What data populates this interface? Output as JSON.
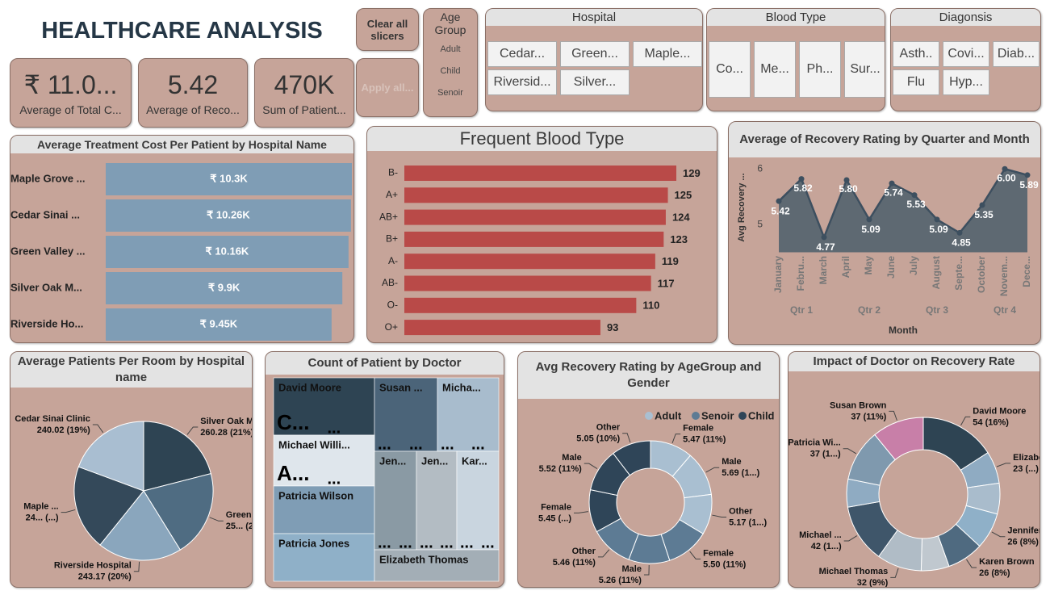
{
  "header": {
    "title": "HEALTHCARE ANALYSIS"
  },
  "buttons": [
    "Clear all slicers",
    "Apply all..."
  ],
  "cards": [
    {
      "value": "₹ 11.0...",
      "label": "Average of Total C..."
    },
    {
      "value": "5.42",
      "label": "Average of Reco..."
    },
    {
      "value": "470K",
      "label": "Sum of Patient..."
    }
  ],
  "slicers": [
    {
      "title": "Age Group",
      "items": [
        "Adult",
        "Child",
        "Senoir"
      ]
    },
    {
      "title": "Hospital",
      "items": [
        "Cedar...",
        "Green...",
        "Maple...",
        "Riversid...",
        "Silver..."
      ]
    },
    {
      "title": "Blood Type",
      "items": [
        "Co...",
        "Me...",
        "Ph...",
        "Sur..."
      ]
    },
    {
      "title": "Diagonsis",
      "items": [
        "Asth..",
        "Covi...",
        "Diab...",
        "Flu",
        "Hyp..."
      ]
    }
  ],
  "chart_data": [
    {
      "type": "bar",
      "orientation": "horizontal",
      "label_position": "inside",
      "title": "Average Treatment Cost Per Patient by Hospital Name",
      "categories": [
        "Maple Grove ...",
        "Cedar Sinai ...",
        "Green Valley ...",
        "Silver Oak M...",
        "Riverside Ho..."
      ],
      "values": [
        10300,
        10260,
        10160,
        9900,
        9450
      ],
      "value_labels": [
        "₹ 10.3K",
        "₹ 10.26K",
        "₹ 10.16K",
        "₹ 9.9K",
        "₹ 9.45K"
      ],
      "color": "#7f9db5"
    },
    {
      "type": "bar",
      "orientation": "horizontal",
      "label_position": "outside",
      "title": "Frequent Blood Type",
      "categories": [
        "B-",
        "A+",
        "AB+",
        "B+",
        "A-",
        "AB-",
        "O-",
        "O+"
      ],
      "values": [
        129,
        125,
        124,
        123,
        119,
        117,
        110,
        93
      ],
      "color": "#b94a48"
    },
    {
      "type": "area",
      "title": "Average of Recovery Rating by Quarter and Month",
      "categories": [
        "January",
        "Febru...",
        "March",
        "April",
        "May",
        "June",
        "July",
        "August",
        "Septe...",
        "October",
        "Novem...",
        "Dece..."
      ],
      "quarters": [
        "Qtr 1",
        "Qtr 2",
        "Qtr 3",
        "Qtr 4"
      ],
      "values": [
        5.42,
        5.82,
        4.77,
        5.8,
        5.09,
        5.74,
        5.53,
        5.09,
        4.85,
        5.35,
        6.0,
        5.89
      ],
      "value_labels": [
        "5.42",
        "5.82",
        "4.77",
        "5.80",
        "5.09",
        "5.74",
        "5.53",
        "5.09",
        "4.85",
        "5.35",
        "6.00",
        "5.89"
      ],
      "ylim": [
        4.5,
        6.12
      ],
      "yticks": [
        5,
        6
      ],
      "y_label": "Avg Recovery ...",
      "x_label": "Month",
      "color": "#3d4f5f",
      "grid": false
    },
    {
      "type": "pie",
      "title": "Average Patients Per Room by Hospital name",
      "categories": [
        "Silver Oak Medi...",
        "Green V...",
        "Riverside Hospital",
        "Maple ...",
        "Cedar Sinai Clinic"
      ],
      "values": [
        260.28,
        250,
        243.17,
        246,
        240.02
      ],
      "value_labels": [
        "260.28 (21%)",
        "25... (2...)",
        "243.17 (20%)",
        "24... (...)",
        "240.02 (19%)"
      ],
      "colors": [
        "#2e4453",
        "#4f6c82",
        "#8aa6bd",
        "#34495a",
        "#a9bed1"
      ]
    },
    {
      "type": "treemap",
      "title": "Count of Patient by Doctor",
      "categories": [
        "David Moore",
        "Susan ...",
        "Micha...",
        "Michael Willi...",
        "Patricia Wilson",
        "Patricia Jones",
        "Jen...",
        "Jen...",
        "Kar...",
        "Elizabeth Thomas"
      ],
      "sublabels": [
        [
          "C...",
          "..."
        ],
        [
          "...",
          "..."
        ],
        [
          "...",
          "..."
        ],
        [
          "A...",
          "..."
        ],
        [],
        [],
        [
          "...",
          "..."
        ],
        [
          "...",
          "..."
        ],
        [
          "...",
          "..."
        ],
        []
      ],
      "colors": [
        "#2e4453",
        "#4b6479",
        "#a8bccd",
        "#dfe6ec",
        "#7f9db5",
        "#8fb0c8",
        "#8a9aa4",
        "#b3bcc3",
        "#c9d5df",
        "#a3aeb6"
      ]
    },
    {
      "type": "donut",
      "title": "Avg Recovery Rating by AgeGroup and Gender",
      "legend": [
        {
          "name": "Adult",
          "color": "#a9bfd1"
        },
        {
          "name": "Senoir",
          "color": "#5d7b94"
        },
        {
          "name": "Child",
          "color": "#2f4558"
        }
      ],
      "categories": [
        "Female",
        "Male",
        "Other",
        "Female",
        "Male",
        "Other",
        "Female",
        "Male",
        "Other"
      ],
      "values": [
        5.47,
        5.69,
        5.17,
        5.5,
        5.26,
        5.46,
        5.45,
        5.52,
        5.05
      ],
      "value_labels": [
        "5.47 (11%)",
        "5.69 (1...)",
        "5.17 (1...)",
        "5.50 (11%)",
        "5.26 (11%)",
        "5.46 (11%)",
        "5.45 (...)",
        "5.52 (11%)",
        "5.05 (10%)"
      ],
      "colors": [
        "#a9bfd1",
        "#a9bfd1",
        "#a9bfd1",
        "#5d7b94",
        "#5d7b94",
        "#5d7b94",
        "#2f4558",
        "#2f4558",
        "#2f4558"
      ]
    },
    {
      "type": "donut",
      "title": "Impact of Doctor on Recovery Rate",
      "categories": [
        "David Moore",
        "Elizabet.",
        null,
        "Jennifer Jo.",
        "Karen Brown",
        null,
        "Michael Thomas",
        "Michael ...",
        null,
        "Patricia Wi...",
        "Susan Brown"
      ],
      "values": [
        54,
        23,
        22,
        26,
        26,
        20,
        32,
        42,
        20,
        37,
        37
      ],
      "value_labels": [
        "54 (16%)",
        "23 (...)",
        null,
        "26 (8%)",
        "26 (8%)",
        null,
        "32 (9%)",
        "42 (1...)",
        null,
        "37 (1...)",
        "37 (11%)"
      ],
      "colors": [
        "#2e4453",
        "#8fabc2",
        "#a9bccc",
        "#8fb0c8",
        "#4f6a80",
        "#c0c8cf",
        "#b0bcc6",
        "#3f566a",
        "#8fabc2",
        "#7f99ae",
        "#c87fa8"
      ]
    }
  ]
}
